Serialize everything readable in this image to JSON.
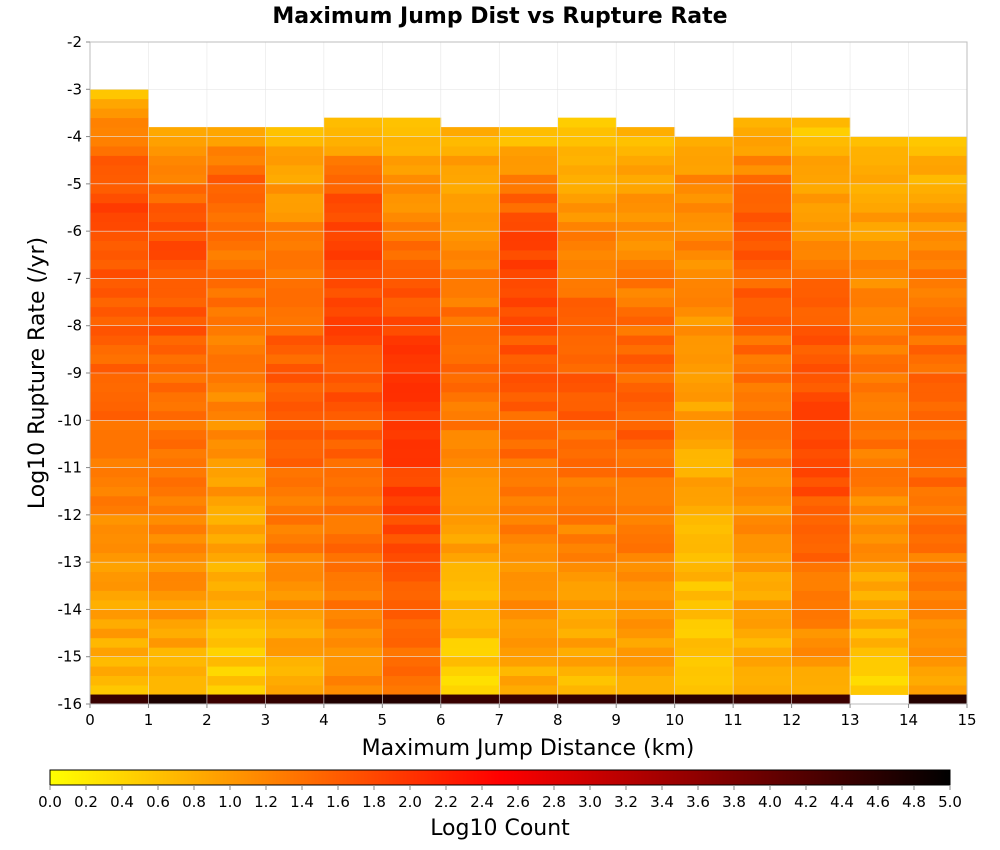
{
  "chart_data": {
    "type": "heatmap",
    "title": "Maximum Jump Dist vs Rupture Rate",
    "xlabel": "Maximum Jump Distance (km)",
    "ylabel": "Log10 Rupture Rate (/yr)",
    "xlim": [
      0,
      15
    ],
    "ylim": [
      -16,
      -2
    ],
    "x_ticks": [
      "0",
      "1",
      "2",
      "3",
      "4",
      "5",
      "6",
      "7",
      "8",
      "9",
      "10",
      "11",
      "12",
      "13",
      "14",
      "15"
    ],
    "y_ticks": [
      "-2",
      "-3",
      "-4",
      "-5",
      "-6",
      "-7",
      "-8",
      "-9",
      "-10",
      "-11",
      "-12",
      "-13",
      "-14",
      "-15",
      "-16"
    ],
    "x_bin_width": 1,
    "y_bin_width": 0.2,
    "y_bin_start": -16,
    "grid": true,
    "colorbar": {
      "label": "Log10 Count",
      "min": 0.0,
      "max": 5.0,
      "ticks": [
        "0.0",
        "0.2",
        "0.4",
        "0.6",
        "0.8",
        "1.0",
        "1.2",
        "1.4",
        "1.6",
        "1.8",
        "2.0",
        "2.2",
        "2.4",
        "2.6",
        "2.8",
        "3.0",
        "3.2",
        "3.4",
        "3.6",
        "3.8",
        "4.0",
        "4.2",
        "4.4",
        "4.6",
        "4.8",
        "5.0"
      ],
      "colors": [
        "#ffff00",
        "#ffaa00",
        "#ff5500",
        "#ff0000",
        "#aa0000",
        "#550000",
        "#000000"
      ]
    },
    "columns": [
      {
        "x": 0.5,
        "top_log_rate": -3.0,
        "peak_log_rate": -5.5,
        "peak_count": 1.8,
        "top_count": 0.55,
        "bottom_count": 0.7
      },
      {
        "x": 1.5,
        "top_log_rate": -3.8,
        "peak_log_rate": -6.4,
        "peak_count": 1.7,
        "top_count": 0.7,
        "bottom_count": 0.75
      },
      {
        "x": 2.5,
        "top_log_rate": -3.8,
        "peak_log_rate": -5.0,
        "peak_count": 1.5,
        "top_count": 0.7,
        "bottom_count": 0.5
      },
      {
        "x": 3.5,
        "top_log_rate": -3.8,
        "peak_log_rate": -9.5,
        "peak_count": 1.6,
        "top_count": 0.7,
        "bottom_count": 0.75
      },
      {
        "x": 4.5,
        "top_log_rate": -3.6,
        "peak_log_rate": -6.0,
        "peak_count": 1.85,
        "top_count": 0.3,
        "bottom_count": 1.1
      },
      {
        "x": 5.5,
        "top_log_rate": -3.6,
        "peak_log_rate": -10.0,
        "peak_count": 2.0,
        "top_count": 0.5,
        "bottom_count": 1.3
      },
      {
        "x": 6.5,
        "top_log_rate": -3.8,
        "peak_log_rate": -9.0,
        "peak_count": 1.4,
        "top_count": 0.7,
        "bottom_count": 0.4
      },
      {
        "x": 7.5,
        "top_log_rate": -3.8,
        "peak_log_rate": -6.5,
        "peak_count": 1.8,
        "top_count": 0.4,
        "bottom_count": 0.8
      },
      {
        "x": 8.5,
        "top_log_rate": -3.6,
        "peak_log_rate": -9.0,
        "peak_count": 1.6,
        "top_count": 0.4,
        "bottom_count": 0.7
      },
      {
        "x": 9.5,
        "top_log_rate": -3.8,
        "peak_log_rate": -10.0,
        "peak_count": 1.55,
        "top_count": 0.6,
        "bottom_count": 0.8
      },
      {
        "x": 10.5,
        "top_log_rate": -4.1,
        "peak_log_rate": -5.3,
        "peak_count": 1.2,
        "top_count": 0.7,
        "bottom_count": 0.45
      },
      {
        "x": 11.5,
        "top_log_rate": -3.6,
        "peak_log_rate": -6.0,
        "peak_count": 1.6,
        "top_count": 0.5,
        "bottom_count": 0.7
      },
      {
        "x": 12.5,
        "top_log_rate": -3.6,
        "peak_log_rate": -10.5,
        "peak_count": 1.8,
        "top_count": 0.5,
        "bottom_count": 0.9
      },
      {
        "x": 13.5,
        "top_log_rate": -4.1,
        "peak_log_rate": -10.0,
        "peak_count": 1.4,
        "top_count": 0.6,
        "bottom_count": 0.45
      },
      {
        "x": 14.5,
        "top_log_rate": -4.1,
        "peak_log_rate": -10.0,
        "peak_count": 1.55,
        "top_count": 0.6,
        "bottom_count": 0.9
      }
    ],
    "bottom_row": {
      "log_rate_range": [
        -16.0,
        -15.8
      ],
      "count_range": [
        4.4,
        4.8
      ],
      "missing_x": [
        13.5
      ]
    }
  }
}
